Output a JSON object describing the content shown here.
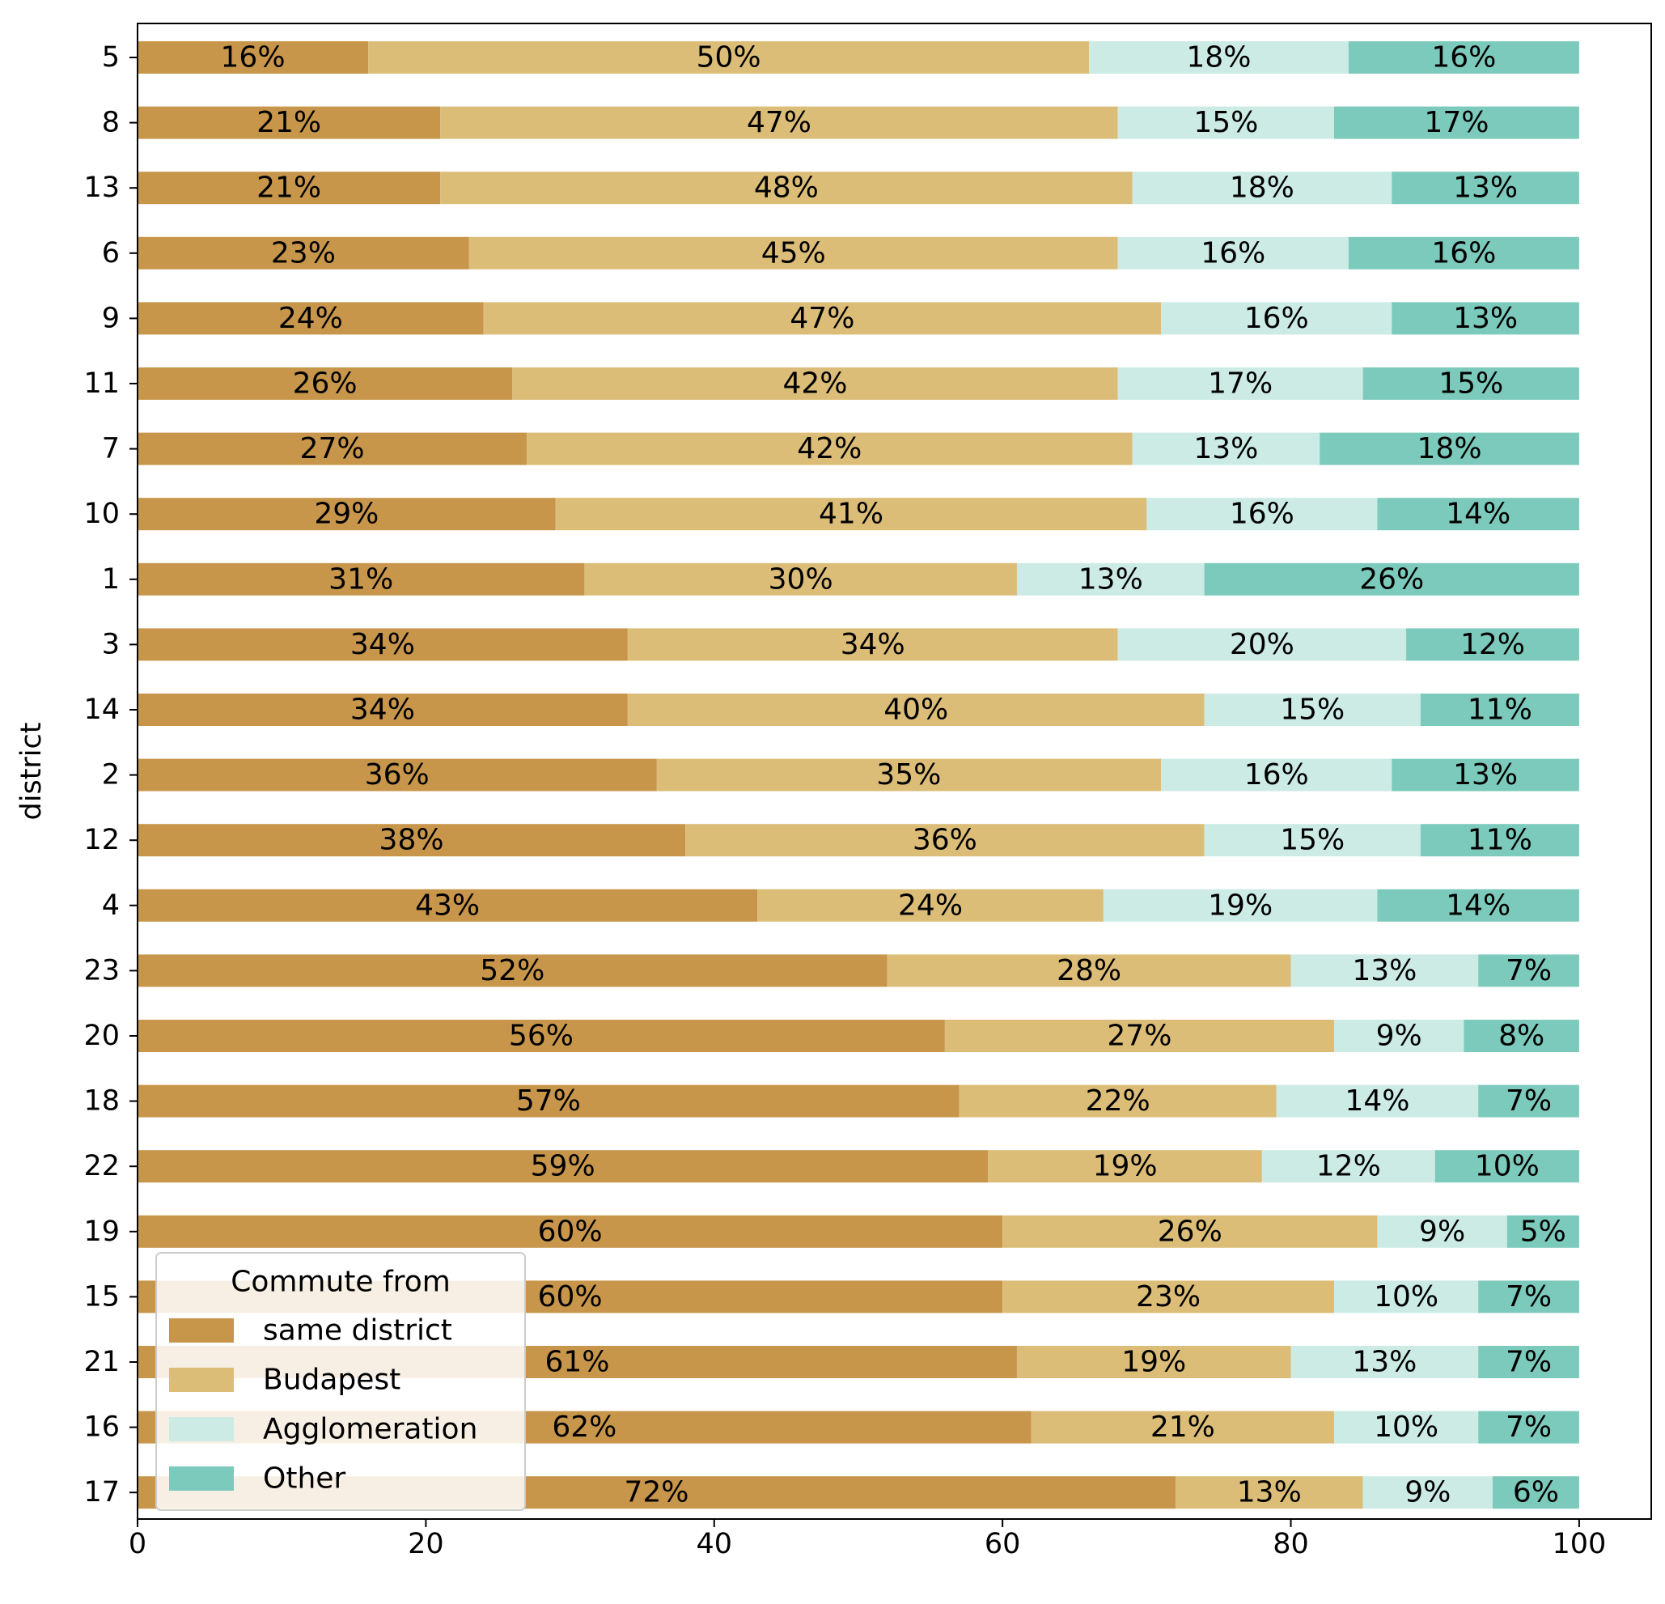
{
  "chart_data": {
    "type": "bar",
    "orientation": "horizontal",
    "stacked": true,
    "title": "",
    "xlabel": "",
    "ylabel": "district",
    "xlim": [
      0,
      105
    ],
    "xticks": [
      0,
      20,
      40,
      60,
      80,
      100
    ],
    "grid": false,
    "legend": {
      "title": "Commute from",
      "placement": "bottom-left"
    },
    "categories": [
      "5",
      "8",
      "13",
      "6",
      "9",
      "11",
      "7",
      "10",
      "1",
      "3",
      "14",
      "2",
      "12",
      "4",
      "23",
      "20",
      "18",
      "22",
      "19",
      "15",
      "21",
      "16",
      "17"
    ],
    "series": [
      {
        "name": "same district",
        "color": "#C8964B",
        "values": [
          16,
          21,
          21,
          23,
          24,
          26,
          27,
          29,
          31,
          34,
          34,
          36,
          38,
          43,
          52,
          56,
          57,
          59,
          60,
          60,
          61,
          62,
          72
        ],
        "labels": [
          "16%",
          "21%",
          "21%",
          "23%",
          "24%",
          "26%",
          "27%",
          "29%",
          "31%",
          "34%",
          "34%",
          "36%",
          "38%",
          "43%",
          "52%",
          "56%",
          "57%",
          "59%",
          "60%",
          "60%",
          "61%",
          "62%",
          "72%"
        ]
      },
      {
        "name": "Budapest",
        "color": "#DCBD78",
        "values": [
          50,
          47,
          48,
          45,
          47,
          42,
          42,
          41,
          30,
          34,
          40,
          35,
          36,
          24,
          28,
          27,
          22,
          19,
          26,
          23,
          19,
          21,
          13
        ],
        "labels": [
          "50%",
          "47%",
          "48%",
          "45%",
          "47%",
          "42%",
          "42%",
          "41%",
          "30%",
          "34%",
          "40%",
          "35%",
          "36%",
          "24%",
          "28%",
          "27%",
          "22%",
          "19%",
          "26%",
          "23%",
          "19%",
          "21%",
          "13%"
        ]
      },
      {
        "name": "Agglomeration",
        "color": "#CCEBE5",
        "values": [
          18,
          15,
          18,
          16,
          16,
          17,
          13,
          16,
          13,
          20,
          15,
          16,
          15,
          19,
          13,
          9,
          14,
          12,
          9,
          10,
          13,
          10,
          9
        ],
        "labels": [
          "18%",
          "15%",
          "18%",
          "16%",
          "16%",
          "17%",
          "13%",
          "16%",
          "13%",
          "20%",
          "15%",
          "16%",
          "15%",
          "19%",
          "13%",
          "9%",
          "14%",
          "12%",
          "9%",
          "10%",
          "13%",
          "10%",
          "9%"
        ]
      },
      {
        "name": "Other",
        "color": "#7CCABC",
        "values": [
          16,
          17,
          13,
          16,
          13,
          15,
          18,
          14,
          26,
          12,
          11,
          13,
          11,
          14,
          7,
          8,
          7,
          10,
          5,
          7,
          7,
          7,
          6
        ],
        "labels": [
          "16%",
          "17%",
          "13%",
          "16%",
          "13%",
          "15%",
          "18%",
          "14%",
          "26%",
          "12%",
          "11%",
          "13%",
          "11%",
          "14%",
          "7%",
          "8%",
          "7%",
          "10%",
          "5%",
          "7%",
          "7%",
          "7%",
          "6%"
        ]
      }
    ]
  }
}
